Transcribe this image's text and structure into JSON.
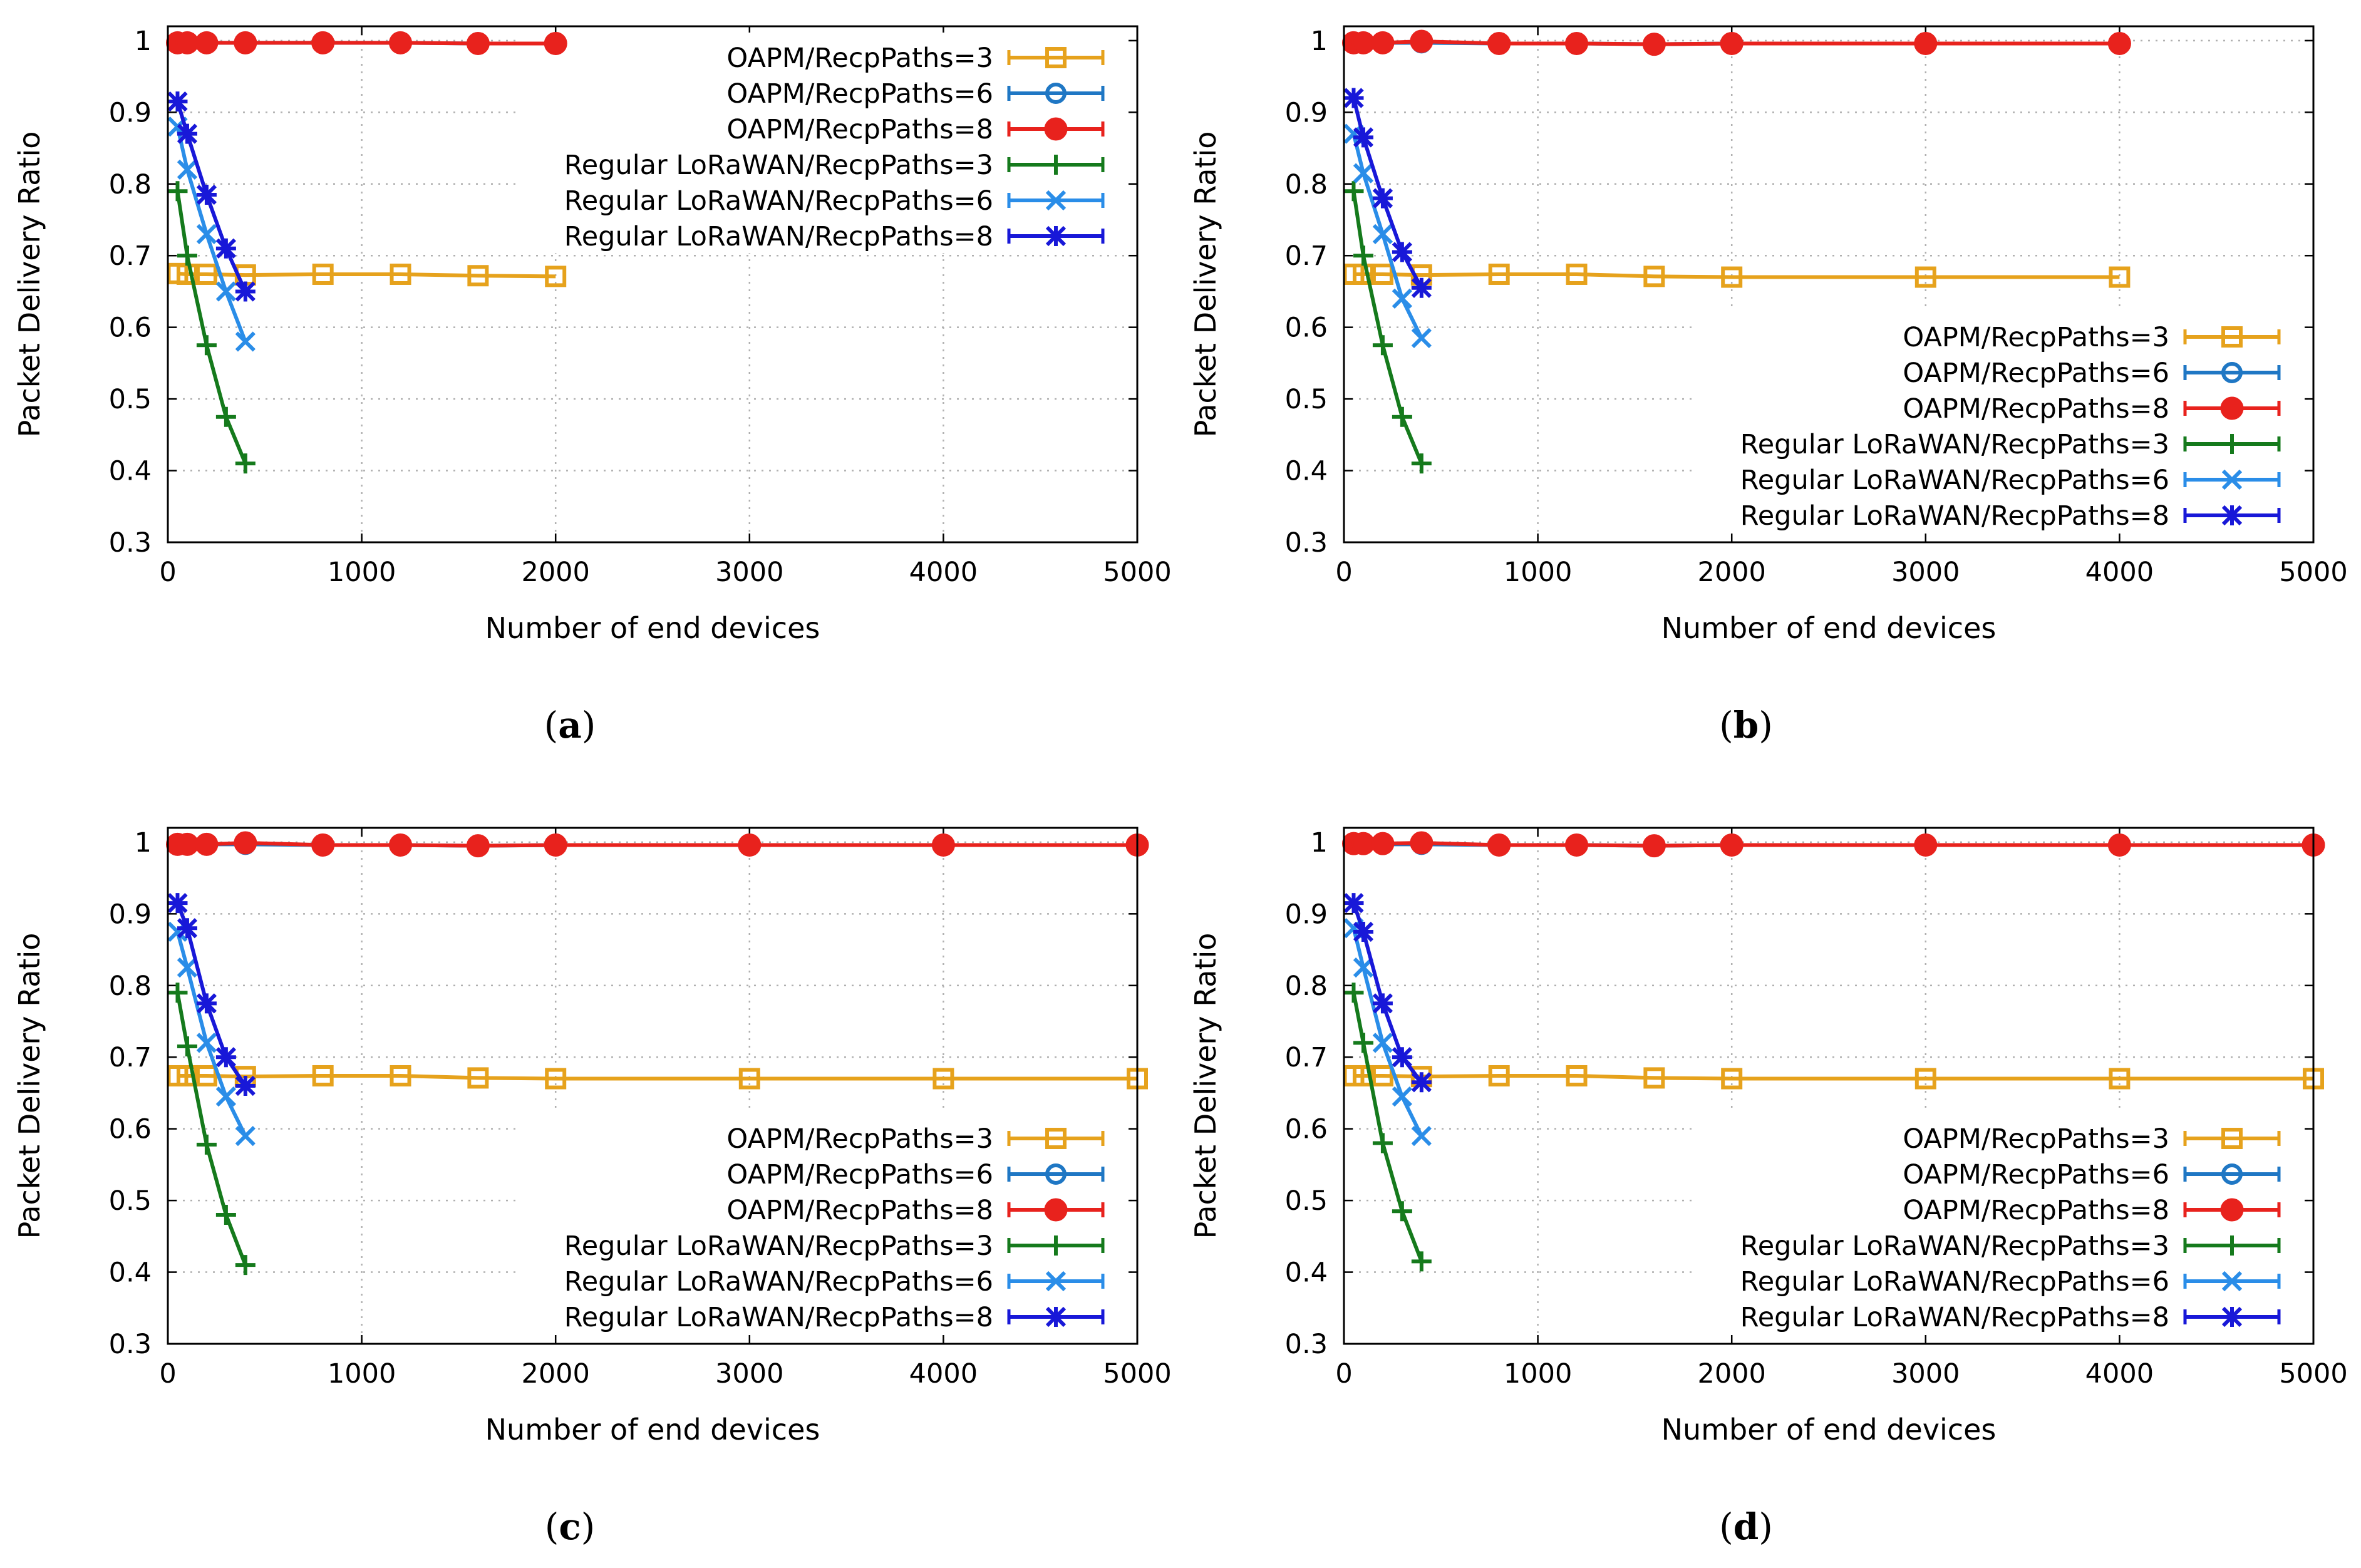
{
  "figure": {
    "captions": [
      "(a)",
      "(b)",
      "(c)",
      "(d)"
    ],
    "caption_letters": [
      "a",
      "b",
      "c",
      "d"
    ]
  },
  "chart_data": [
    {
      "type": "line",
      "panel": "a",
      "xlabel": "Number of end devices",
      "ylabel": "Packet Delivery Ratio",
      "xlim": [
        0,
        5000
      ],
      "ylim": [
        0.3,
        1.02
      ],
      "xticks": [
        "0",
        "1000",
        "2000",
        "3000",
        "4000",
        "5000"
      ],
      "yticks": [
        "0.3",
        "0.4",
        "0.5",
        "0.6",
        "0.7",
        "0.8",
        "0.9",
        "1"
      ],
      "grid": true,
      "legend_position": "top-right",
      "series": [
        {
          "name": "OAPM/RecpPaths=3",
          "color": "#e6a21c",
          "marker": "square-open",
          "x": [
            50,
            100,
            200,
            400,
            800,
            1200,
            1600,
            2000
          ],
          "y": [
            0.675,
            0.674,
            0.674,
            0.673,
            0.674,
            0.674,
            0.672,
            0.671
          ]
        },
        {
          "name": "OAPM/RecpPaths=6",
          "color": "#1f77c4",
          "marker": "circle-open",
          "x": [
            50,
            100,
            200,
            400,
            800,
            1200,
            1600,
            2000
          ],
          "y": [
            0.997,
            0.997,
            0.997,
            0.997,
            0.997,
            0.997,
            0.996,
            0.996
          ]
        },
        {
          "name": "OAPM/RecpPaths=8",
          "color": "#e8221d",
          "marker": "circle",
          "x": [
            50,
            100,
            200,
            400,
            800,
            1200,
            1600,
            2000
          ],
          "y": [
            0.997,
            0.997,
            0.997,
            0.997,
            0.997,
            0.997,
            0.996,
            0.996
          ]
        },
        {
          "name": "Regular LoRaWAN/RecpPaths=3",
          "color": "#157a1c",
          "marker": "plus",
          "x": [
            50,
            100,
            200,
            300,
            400
          ],
          "y": [
            0.79,
            0.7,
            0.575,
            0.475,
            0.41
          ]
        },
        {
          "name": "Regular LoRaWAN/RecpPaths=6",
          "color": "#2a8de8",
          "marker": "cross",
          "x": [
            50,
            100,
            200,
            300,
            400
          ],
          "y": [
            0.88,
            0.82,
            0.73,
            0.65,
            0.58
          ]
        },
        {
          "name": "Regular LoRaWAN/RecpPaths=8",
          "color": "#1818d8",
          "marker": "star",
          "x": [
            50,
            100,
            200,
            300,
            400
          ],
          "y": [
            0.915,
            0.87,
            0.785,
            0.71,
            0.65
          ]
        }
      ]
    },
    {
      "type": "line",
      "panel": "b",
      "xlabel": "Number of end devices",
      "ylabel": "Packet Delivery Ratio",
      "xlim": [
        0,
        5000
      ],
      "ylim": [
        0.3,
        1.02
      ],
      "xticks": [
        "0",
        "1000",
        "2000",
        "3000",
        "4000",
        "5000"
      ],
      "yticks": [
        "0.3",
        "0.4",
        "0.5",
        "0.6",
        "0.7",
        "0.8",
        "0.9",
        "1"
      ],
      "grid": true,
      "legend_position": "bottom-right",
      "series": [
        {
          "name": "OAPM/RecpPaths=3",
          "color": "#e6a21c",
          "marker": "square-open",
          "x": [
            50,
            100,
            200,
            400,
            800,
            1200,
            1600,
            2000,
            3000,
            4000
          ],
          "y": [
            0.674,
            0.674,
            0.674,
            0.673,
            0.674,
            0.674,
            0.671,
            0.67,
            0.67,
            0.67
          ]
        },
        {
          "name": "OAPM/RecpPaths=6",
          "color": "#1f77c4",
          "marker": "circle-open",
          "x": [
            50,
            100,
            200,
            400,
            800,
            1200,
            1600,
            2000,
            3000,
            4000
          ],
          "y": [
            0.997,
            0.997,
            0.997,
            0.997,
            0.996,
            0.996,
            0.995,
            0.996,
            0.996,
            0.996
          ]
        },
        {
          "name": "OAPM/RecpPaths=8",
          "color": "#e8221d",
          "marker": "circle",
          "x": [
            50,
            100,
            200,
            400,
            800,
            1200,
            1600,
            2000,
            3000,
            4000
          ],
          "y": [
            0.997,
            0.997,
            0.997,
            0.999,
            0.996,
            0.996,
            0.995,
            0.996,
            0.996,
            0.996
          ]
        },
        {
          "name": "Regular LoRaWAN/RecpPaths=3",
          "color": "#157a1c",
          "marker": "plus",
          "x": [
            50,
            100,
            200,
            300,
            400
          ],
          "y": [
            0.79,
            0.7,
            0.575,
            0.475,
            0.41
          ]
        },
        {
          "name": "Regular LoRaWAN/RecpPaths=6",
          "color": "#2a8de8",
          "marker": "cross",
          "x": [
            50,
            100,
            200,
            300,
            400
          ],
          "y": [
            0.87,
            0.815,
            0.73,
            0.64,
            0.585
          ]
        },
        {
          "name": "Regular LoRaWAN/RecpPaths=8",
          "color": "#1818d8",
          "marker": "star",
          "x": [
            50,
            100,
            200,
            300,
            400
          ],
          "y": [
            0.92,
            0.865,
            0.78,
            0.705,
            0.655
          ]
        }
      ]
    },
    {
      "type": "line",
      "panel": "c",
      "xlabel": "Number of end devices",
      "ylabel": "Packet Delivery Ratio",
      "xlim": [
        0,
        5000
      ],
      "ylim": [
        0.3,
        1.02
      ],
      "xticks": [
        "0",
        "1000",
        "2000",
        "3000",
        "4000",
        "5000"
      ],
      "yticks": [
        "0.3",
        "0.4",
        "0.5",
        "0.6",
        "0.7",
        "0.8",
        "0.9",
        "1"
      ],
      "grid": true,
      "legend_position": "bottom-right",
      "series": [
        {
          "name": "OAPM/RecpPaths=3",
          "color": "#e6a21c",
          "marker": "square-open",
          "x": [
            50,
            100,
            200,
            400,
            800,
            1200,
            1600,
            2000,
            3000,
            4000,
            5000
          ],
          "y": [
            0.674,
            0.674,
            0.674,
            0.673,
            0.674,
            0.674,
            0.671,
            0.67,
            0.67,
            0.67,
            0.67
          ]
        },
        {
          "name": "OAPM/RecpPaths=6",
          "color": "#1f77c4",
          "marker": "circle-open",
          "x": [
            50,
            100,
            200,
            400,
            800,
            1200,
            1600,
            2000,
            3000,
            4000,
            5000
          ],
          "y": [
            0.997,
            0.997,
            0.997,
            0.997,
            0.996,
            0.996,
            0.995,
            0.996,
            0.996,
            0.996,
            0.996
          ]
        },
        {
          "name": "OAPM/RecpPaths=8",
          "color": "#e8221d",
          "marker": "circle",
          "x": [
            50,
            100,
            200,
            400,
            800,
            1200,
            1600,
            2000,
            3000,
            4000,
            5000
          ],
          "y": [
            0.997,
            0.997,
            0.997,
            0.999,
            0.996,
            0.996,
            0.995,
            0.996,
            0.996,
            0.996,
            0.996
          ]
        },
        {
          "name": "Regular LoRaWAN/RecpPaths=3",
          "color": "#157a1c",
          "marker": "plus",
          "x": [
            50,
            100,
            200,
            300,
            400
          ],
          "y": [
            0.79,
            0.715,
            0.578,
            0.48,
            0.41
          ]
        },
        {
          "name": "Regular LoRaWAN/RecpPaths=6",
          "color": "#2a8de8",
          "marker": "cross",
          "x": [
            50,
            100,
            200,
            300,
            400
          ],
          "y": [
            0.875,
            0.825,
            0.72,
            0.645,
            0.59
          ]
        },
        {
          "name": "Regular LoRaWAN/RecpPaths=8",
          "color": "#1818d8",
          "marker": "star",
          "x": [
            50,
            100,
            200,
            300,
            400
          ],
          "y": [
            0.915,
            0.88,
            0.775,
            0.7,
            0.66
          ]
        }
      ]
    },
    {
      "type": "line",
      "panel": "d",
      "xlabel": "Number of end devices",
      "ylabel": "Packet Delivery Ratio",
      "xlim": [
        0,
        5000
      ],
      "ylim": [
        0.3,
        1.02
      ],
      "xticks": [
        "0",
        "1000",
        "2000",
        "3000",
        "4000",
        "5000"
      ],
      "yticks": [
        "0.3",
        "0.4",
        "0.5",
        "0.6",
        "0.7",
        "0.8",
        "0.9",
        "1"
      ],
      "grid": true,
      "legend_position": "bottom-right",
      "series": [
        {
          "name": "OAPM/RecpPaths=3",
          "color": "#e6a21c",
          "marker": "square-open",
          "x": [
            50,
            100,
            200,
            400,
            800,
            1200,
            1600,
            2000,
            3000,
            4000,
            5000
          ],
          "y": [
            0.674,
            0.674,
            0.674,
            0.673,
            0.674,
            0.674,
            0.671,
            0.67,
            0.67,
            0.67,
            0.67
          ]
        },
        {
          "name": "OAPM/RecpPaths=6",
          "color": "#1f77c4",
          "marker": "circle-open",
          "x": [
            50,
            100,
            200,
            400,
            800,
            1200,
            1600,
            2000,
            3000,
            4000,
            5000
          ],
          "y": [
            0.997,
            0.997,
            0.997,
            0.997,
            0.996,
            0.996,
            0.995,
            0.996,
            0.996,
            0.996,
            0.996
          ]
        },
        {
          "name": "OAPM/RecpPaths=8",
          "color": "#e8221d",
          "marker": "circle",
          "x": [
            50,
            100,
            200,
            400,
            800,
            1200,
            1600,
            2000,
            3000,
            4000,
            5000
          ],
          "y": [
            0.998,
            0.998,
            0.998,
            0.999,
            0.996,
            0.996,
            0.995,
            0.996,
            0.996,
            0.996,
            0.996
          ]
        },
        {
          "name": "Regular LoRaWAN/RecpPaths=3",
          "color": "#157a1c",
          "marker": "plus",
          "x": [
            50,
            100,
            200,
            300,
            400
          ],
          "y": [
            0.79,
            0.72,
            0.58,
            0.485,
            0.415
          ]
        },
        {
          "name": "Regular LoRaWAN/RecpPaths=6",
          "color": "#2a8de8",
          "marker": "cross",
          "x": [
            50,
            100,
            200,
            300,
            400
          ],
          "y": [
            0.88,
            0.825,
            0.72,
            0.645,
            0.59
          ]
        },
        {
          "name": "Regular LoRaWAN/RecpPaths=8",
          "color": "#1818d8",
          "marker": "star",
          "x": [
            50,
            100,
            200,
            300,
            400
          ],
          "y": [
            0.915,
            0.875,
            0.775,
            0.7,
            0.665
          ]
        }
      ]
    }
  ]
}
